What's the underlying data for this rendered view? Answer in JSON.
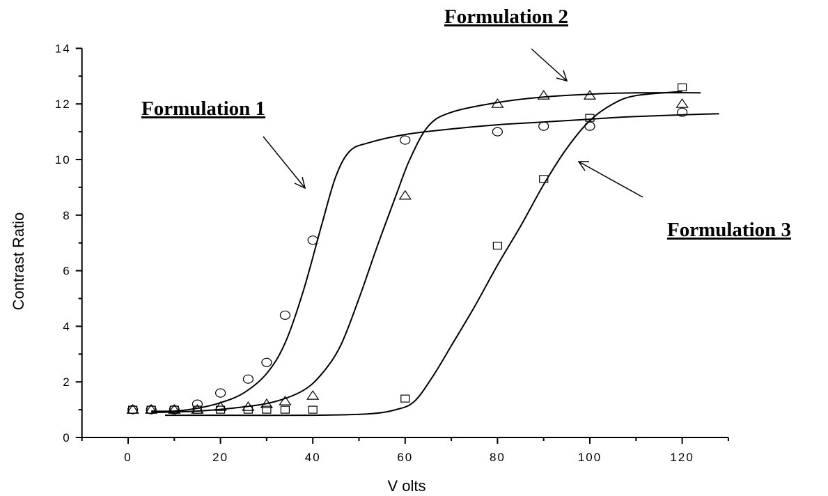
{
  "chart_data": {
    "type": "scatter",
    "xlabel": "V olts",
    "ylabel": "Contrast Ratio",
    "xlim": [
      -10,
      130
    ],
    "ylim": [
      0,
      14
    ],
    "x_ticks": [
      0,
      20,
      40,
      60,
      80,
      100,
      120
    ],
    "y_ticks": [
      0,
      2,
      4,
      6,
      8,
      10,
      12,
      14
    ],
    "grid": false,
    "legend": "none",
    "series": [
      {
        "marker": "circle",
        "points": [
          [
            1,
            1.0
          ],
          [
            5,
            1.0
          ],
          [
            10,
            1.0
          ],
          [
            15,
            1.2
          ],
          [
            20,
            1.6
          ],
          [
            26,
            2.1
          ],
          [
            30,
            2.7
          ],
          [
            34,
            4.4
          ],
          [
            40,
            7.1
          ],
          [
            60,
            10.7
          ],
          [
            80,
            11.0
          ],
          [
            90,
            11.2
          ],
          [
            100,
            11.2
          ],
          [
            120,
            11.7
          ]
        ],
        "fit": [
          [
            5,
            0.95
          ],
          [
            10,
            0.95
          ],
          [
            15,
            1.05
          ],
          [
            20,
            1.25
          ],
          [
            25,
            1.6
          ],
          [
            30,
            2.3
          ],
          [
            34,
            3.4
          ],
          [
            38,
            5.3
          ],
          [
            42,
            7.7
          ],
          [
            45,
            9.4
          ],
          [
            48,
            10.3
          ],
          [
            52,
            10.6
          ],
          [
            60,
            10.9
          ],
          [
            70,
            11.1
          ],
          [
            80,
            11.25
          ],
          [
            90,
            11.35
          ],
          [
            100,
            11.45
          ],
          [
            110,
            11.55
          ],
          [
            128,
            11.65
          ]
        ]
      },
      {
        "marker": "triangle",
        "points": [
          [
            1,
            1.0
          ],
          [
            5,
            1.0
          ],
          [
            10,
            1.0
          ],
          [
            15,
            1.0
          ],
          [
            20,
            1.1
          ],
          [
            26,
            1.1
          ],
          [
            30,
            1.2
          ],
          [
            34,
            1.3
          ],
          [
            40,
            1.5
          ],
          [
            60,
            8.7
          ],
          [
            80,
            12.0
          ],
          [
            90,
            12.3
          ],
          [
            100,
            12.3
          ],
          [
            120,
            12.0
          ]
        ],
        "fit": [
          [
            5,
            0.9
          ],
          [
            15,
            0.95
          ],
          [
            25,
            1.1
          ],
          [
            32,
            1.3
          ],
          [
            38,
            1.7
          ],
          [
            42,
            2.3
          ],
          [
            46,
            3.3
          ],
          [
            50,
            5.0
          ],
          [
            54,
            6.9
          ],
          [
            58,
            8.7
          ],
          [
            61,
            10.0
          ],
          [
            65,
            11.2
          ],
          [
            70,
            11.7
          ],
          [
            80,
            12.05
          ],
          [
            90,
            12.25
          ],
          [
            100,
            12.35
          ],
          [
            110,
            12.4
          ],
          [
            124,
            12.4
          ]
        ]
      },
      {
        "marker": "square",
        "points": [
          [
            1,
            1.0
          ],
          [
            5,
            1.0
          ],
          [
            10,
            1.0
          ],
          [
            15,
            1.0
          ],
          [
            20,
            1.0
          ],
          [
            26,
            1.0
          ],
          [
            30,
            1.0
          ],
          [
            34,
            1.0
          ],
          [
            40,
            1.0
          ],
          [
            60,
            1.4
          ],
          [
            80,
            6.9
          ],
          [
            90,
            9.3
          ],
          [
            100,
            11.5
          ],
          [
            120,
            12.6
          ]
        ],
        "fit": [
          [
            8,
            0.8
          ],
          [
            20,
            0.8
          ],
          [
            40,
            0.8
          ],
          [
            52,
            0.85
          ],
          [
            58,
            1.0
          ],
          [
            62,
            1.3
          ],
          [
            66,
            2.2
          ],
          [
            70,
            3.3
          ],
          [
            75,
            4.7
          ],
          [
            80,
            6.2
          ],
          [
            85,
            7.6
          ],
          [
            90,
            9.1
          ],
          [
            95,
            10.4
          ],
          [
            100,
            11.4
          ],
          [
            105,
            12.0
          ],
          [
            110,
            12.3
          ],
          [
            120,
            12.45
          ]
        ]
      }
    ],
    "annotations": [
      {
        "id": "f1",
        "text": "Formulation 1"
      },
      {
        "id": "f2",
        "text": "Formulation 2"
      },
      {
        "id": "f3",
        "text": "Formulation 3"
      }
    ]
  }
}
